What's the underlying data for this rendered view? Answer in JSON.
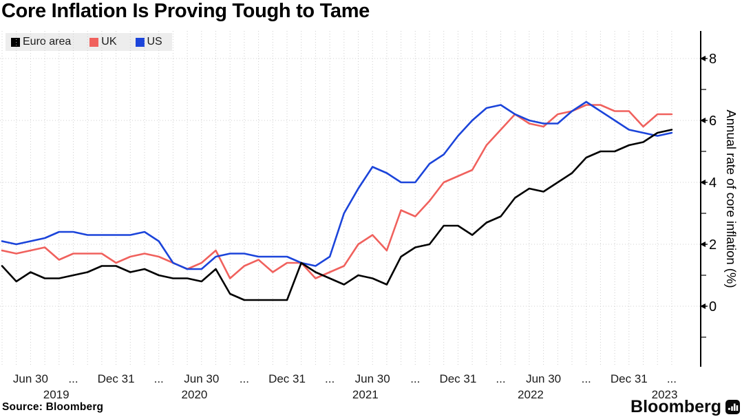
{
  "title": "Core Inflation Is Proving Tough to Tame",
  "source": "Source: Bloomberg",
  "brand": {
    "wordmark": "Bloomberg",
    "icon": "bar-chart-app-icon"
  },
  "legend": {
    "items": [
      {
        "label": "Euro area",
        "color": "#000000"
      },
      {
        "label": "UK",
        "color": "#f0615d"
      },
      {
        "label": "US",
        "color": "#1b44da"
      }
    ]
  },
  "y_axis": {
    "title": "Annual rate of core inflation (%)",
    "major_ticks": [
      8,
      6,
      4,
      2,
      0
    ],
    "minor_ticks": [
      7,
      5,
      3,
      1,
      -1
    ],
    "side": "right"
  },
  "x_axis": {
    "ticks": [
      {
        "monthIndex": 2,
        "label": "Jun 30"
      },
      {
        "monthIndex": 5,
        "label": "..."
      },
      {
        "monthIndex": 8,
        "label": "Dec 31"
      },
      {
        "monthIndex": 11,
        "label": "..."
      },
      {
        "monthIndex": 14,
        "label": "Jun 30"
      },
      {
        "monthIndex": 17,
        "label": "..."
      },
      {
        "monthIndex": 20,
        "label": "Dec 31"
      },
      {
        "monthIndex": 23,
        "label": "..."
      },
      {
        "monthIndex": 26,
        "label": "Jun 30"
      },
      {
        "monthIndex": 29,
        "label": "..."
      },
      {
        "monthIndex": 32,
        "label": "Dec 31"
      },
      {
        "monthIndex": 35,
        "label": "..."
      },
      {
        "monthIndex": 38,
        "label": "Jun 30"
      },
      {
        "monthIndex": 41,
        "label": "..."
      },
      {
        "monthIndex": 44,
        "label": "Dec 31"
      },
      {
        "monthIndex": 47,
        "label": "..."
      }
    ],
    "year_labels": [
      {
        "monthIndex": 3.8,
        "label": "2019"
      },
      {
        "monthIndex": 13.5,
        "label": "2020"
      },
      {
        "monthIndex": 25.5,
        "label": "2021"
      },
      {
        "monthIndex": 37.1,
        "label": "2022"
      },
      {
        "monthIndex": 46.5,
        "label": "2023"
      }
    ]
  },
  "chart_data": {
    "type": "line",
    "title": "Core Inflation Is Proving Tough to Tame",
    "ylabel": "Annual rate of core inflation (%)",
    "ylim": [
      -2,
      8.9
    ],
    "grid": "dotted",
    "legend_position": "top-left",
    "x_months": [
      "2019-04",
      "2019-05",
      "2019-06",
      "2019-07",
      "2019-08",
      "2019-09",
      "2019-10",
      "2019-11",
      "2019-12",
      "2020-01",
      "2020-02",
      "2020-03",
      "2020-04",
      "2020-05",
      "2020-06",
      "2020-07",
      "2020-08",
      "2020-09",
      "2020-10",
      "2020-11",
      "2020-12",
      "2021-01",
      "2021-02",
      "2021-03",
      "2021-04",
      "2021-05",
      "2021-06",
      "2021-07",
      "2021-08",
      "2021-09",
      "2021-10",
      "2021-11",
      "2021-12",
      "2022-01",
      "2022-02",
      "2022-03",
      "2022-04",
      "2022-05",
      "2022-06",
      "2022-07",
      "2022-08",
      "2022-09",
      "2022-10",
      "2022-11",
      "2022-12",
      "2023-01",
      "2023-02",
      "2023-03"
    ],
    "series": [
      {
        "name": "Euro area",
        "color": "#000000",
        "values": [
          1.3,
          0.8,
          1.1,
          0.9,
          0.9,
          1.0,
          1.1,
          1.3,
          1.3,
          1.1,
          1.2,
          1.0,
          0.9,
          0.9,
          0.8,
          1.2,
          0.4,
          0.2,
          0.2,
          0.2,
          0.2,
          1.4,
          1.1,
          0.9,
          0.7,
          1.0,
          0.9,
          0.7,
          1.6,
          1.9,
          2.0,
          2.6,
          2.6,
          2.3,
          2.7,
          2.9,
          3.5,
          3.8,
          3.7,
          4.0,
          4.3,
          4.8,
          5.0,
          5.0,
          5.2,
          5.3,
          5.6,
          5.7
        ]
      },
      {
        "name": "UK",
        "color": "#f0615d",
        "values": [
          1.8,
          1.7,
          1.8,
          1.9,
          1.5,
          1.7,
          1.7,
          1.7,
          1.4,
          1.6,
          1.7,
          1.6,
          1.4,
          1.2,
          1.4,
          1.8,
          0.9,
          1.3,
          1.5,
          1.1,
          1.4,
          1.4,
          0.9,
          1.1,
          1.3,
          2.0,
          2.3,
          1.8,
          3.1,
          2.9,
          3.4,
          4.0,
          4.2,
          4.4,
          5.2,
          5.7,
          6.2,
          5.9,
          5.8,
          6.2,
          6.3,
          6.5,
          6.5,
          6.3,
          6.3,
          5.8,
          6.2,
          6.2
        ]
      },
      {
        "name": "US",
        "color": "#1b44da",
        "values": [
          2.1,
          2.0,
          2.1,
          2.2,
          2.4,
          2.4,
          2.3,
          2.3,
          2.3,
          2.3,
          2.4,
          2.1,
          1.4,
          1.2,
          1.2,
          1.6,
          1.7,
          1.7,
          1.6,
          1.6,
          1.6,
          1.4,
          1.3,
          1.6,
          3.0,
          3.8,
          4.5,
          4.3,
          4.0,
          4.0,
          4.6,
          4.9,
          5.5,
          6.0,
          6.4,
          6.5,
          6.2,
          6.0,
          5.9,
          5.9,
          6.3,
          6.6,
          6.3,
          6.0,
          5.7,
          5.6,
          5.5,
          5.6
        ]
      }
    ]
  }
}
